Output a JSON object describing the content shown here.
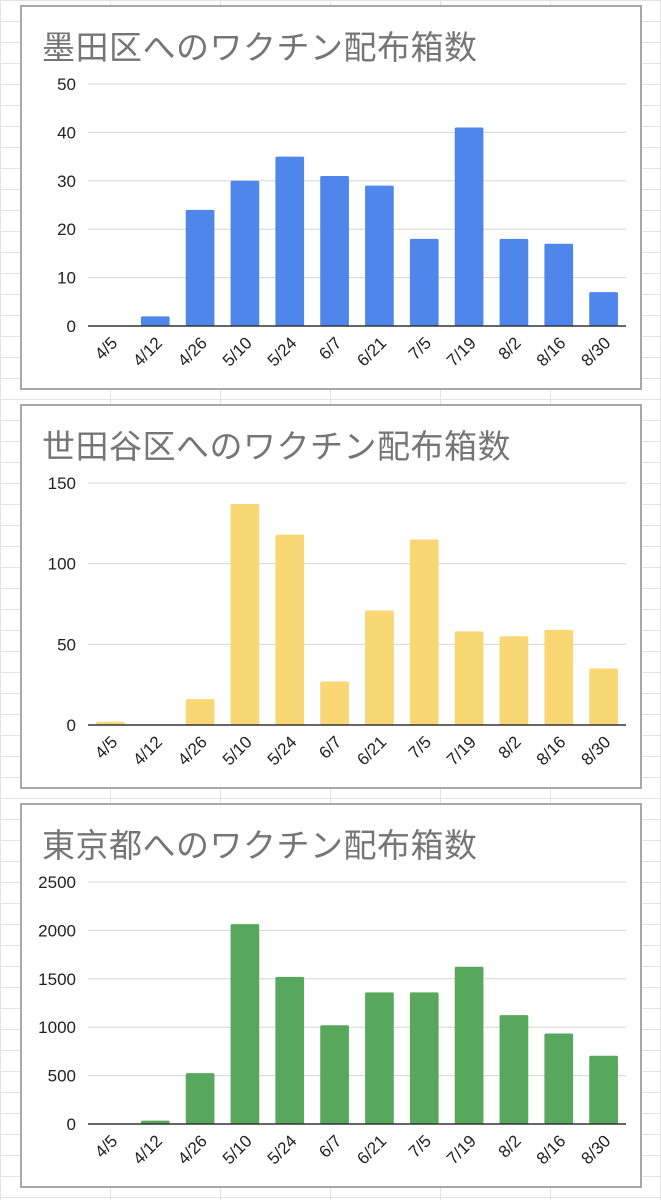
{
  "charts": [
    {
      "title": "墨田区へのワクチン配布箱数",
      "color": "#4f86ec",
      "chart_data": {
        "type": "bar",
        "title": "墨田区へのワクチン配布箱数",
        "categories": [
          "4/5",
          "4/12",
          "4/26",
          "5/10",
          "5/24",
          "6/7",
          "6/21",
          "7/5",
          "7/19",
          "8/2",
          "8/16",
          "8/30"
        ],
        "values": [
          0,
          2,
          24,
          30,
          35,
          31,
          29,
          18,
          41,
          18,
          17,
          7
        ],
        "ylim": [
          0,
          50
        ],
        "yticks": [
          0,
          10,
          20,
          30,
          40,
          50
        ],
        "grid": true
      }
    },
    {
      "title": "世田谷区へのワクチン配布箱数",
      "color": "#f9d775",
      "chart_data": {
        "type": "bar",
        "title": "世田谷区へのワクチン配布箱数",
        "categories": [
          "4/5",
          "4/12",
          "4/26",
          "5/10",
          "5/24",
          "6/7",
          "6/21",
          "7/5",
          "7/19",
          "8/2",
          "8/16",
          "8/30"
        ],
        "values": [
          2,
          0,
          16,
          137,
          118,
          27,
          71,
          115,
          58,
          55,
          59,
          35
        ],
        "ylim": [
          0,
          150
        ],
        "yticks": [
          0,
          50,
          100,
          150
        ],
        "grid": true
      }
    },
    {
      "title": "東京都へのワクチン配布箱数",
      "color": "#57a85d",
      "chart_data": {
        "type": "bar",
        "title": "東京都へのワクチン配布箱数",
        "categories": [
          "4/5",
          "4/12",
          "4/26",
          "5/10",
          "5/24",
          "6/7",
          "6/21",
          "7/5",
          "7/19",
          "8/2",
          "8/16",
          "8/30"
        ],
        "values": [
          0,
          35,
          525,
          2065,
          1520,
          1020,
          1360,
          1360,
          1625,
          1125,
          935,
          705
        ],
        "ylim": [
          0,
          2500
        ],
        "yticks": [
          0,
          500,
          1000,
          1500,
          2000,
          2500
        ],
        "grid": true
      }
    }
  ]
}
